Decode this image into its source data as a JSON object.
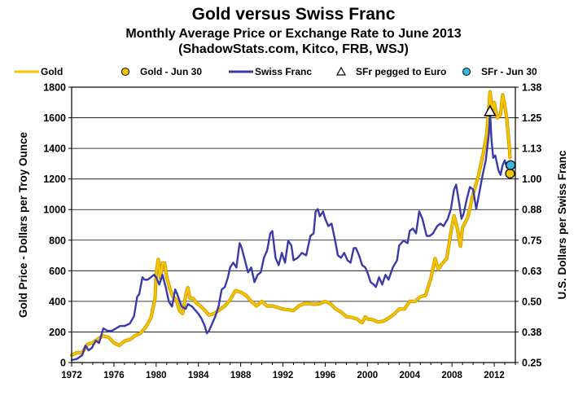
{
  "chart_data": {
    "type": "line",
    "title": "Gold versus Swiss Franc",
    "subtitle1": "Monthly Average Price or Exchange Rate to June 2013",
    "subtitle2": "(ShadowStats.com, Kitco, FRB, WSJ)",
    "ylabel_left": "Gold Price - Dollars per Troy Ounce",
    "ylabel_right": "U.S. Dollars per Swiss Franc",
    "xlim": [
      1972,
      2014
    ],
    "ylim_left": [
      0,
      1800
    ],
    "ylim_right": [
      0.25,
      1.38
    ],
    "x_ticks": [
      "1972",
      "1976",
      "1980",
      "1984",
      "1988",
      "1992",
      "1996",
      "2000",
      "2004",
      "2008",
      "2012"
    ],
    "y_ticks_left": [
      "0",
      "200",
      "400",
      "600",
      "800",
      "1000",
      "1200",
      "1400",
      "1600",
      "1800"
    ],
    "y_ticks_right": [
      "0.25",
      "0.38",
      "0.50",
      "0.63",
      "0.75",
      "0.88",
      "1.00",
      "1.13",
      "1.25",
      "1.38"
    ],
    "grid": true,
    "legend_position": "top",
    "legend": [
      {
        "label": "Gold",
        "kind": "line",
        "color": "#F5C400"
      },
      {
        "label": "Gold - Jun 30",
        "kind": "circle",
        "color": "#F5C400"
      },
      {
        "label": "Swiss Franc",
        "kind": "line",
        "color": "#3A3AA8"
      },
      {
        "label": "SFr pegged to Euro",
        "kind": "triangle",
        "color": "#ffffff"
      },
      {
        "label": "SFr - Jun 30",
        "kind": "circle",
        "color": "#35B8E0"
      }
    ],
    "series": [
      {
        "name": "Gold",
        "axis": "left",
        "color": "#F5C400",
        "points": [
          [
            1972.0,
            48
          ],
          [
            1972.5,
            65
          ],
          [
            1973.0,
            65
          ],
          [
            1973.5,
            120
          ],
          [
            1974.0,
            130
          ],
          [
            1974.5,
            155
          ],
          [
            1975.0,
            175
          ],
          [
            1975.5,
            165
          ],
          [
            1976.0,
            130
          ],
          [
            1976.5,
            112
          ],
          [
            1977.0,
            140
          ],
          [
            1977.5,
            150
          ],
          [
            1978.0,
            175
          ],
          [
            1978.5,
            190
          ],
          [
            1979.0,
            230
          ],
          [
            1979.5,
            290
          ],
          [
            1979.9,
            420
          ],
          [
            1980.0,
            580
          ],
          [
            1980.2,
            675
          ],
          [
            1980.4,
            550
          ],
          [
            1980.6,
            650
          ],
          [
            1980.8,
            650
          ],
          [
            1981.0,
            560
          ],
          [
            1981.3,
            480
          ],
          [
            1981.6,
            430
          ],
          [
            1981.9,
            410
          ],
          [
            1982.2,
            340
          ],
          [
            1982.5,
            320
          ],
          [
            1982.8,
            440
          ],
          [
            1983.0,
            490
          ],
          [
            1983.2,
            420
          ],
          [
            1983.5,
            420
          ],
          [
            1983.8,
            390
          ],
          [
            1984.0,
            380
          ],
          [
            1984.5,
            350
          ],
          [
            1985.0,
            310
          ],
          [
            1985.5,
            320
          ],
          [
            1986.0,
            345
          ],
          [
            1986.5,
            370
          ],
          [
            1987.0,
            410
          ],
          [
            1987.5,
            470
          ],
          [
            1988.0,
            460
          ],
          [
            1988.5,
            440
          ],
          [
            1989.0,
            400
          ],
          [
            1989.5,
            370
          ],
          [
            1990.0,
            400
          ],
          [
            1990.5,
            370
          ],
          [
            1991.0,
            370
          ],
          [
            1991.5,
            360
          ],
          [
            1992.0,
            350
          ],
          [
            1992.5,
            345
          ],
          [
            1993.0,
            340
          ],
          [
            1993.5,
            370
          ],
          [
            1994.0,
            385
          ],
          [
            1994.5,
            385
          ],
          [
            1995.0,
            380
          ],
          [
            1995.5,
            385
          ],
          [
            1996.0,
            400
          ],
          [
            1996.5,
            385
          ],
          [
            1997.0,
            350
          ],
          [
            1997.5,
            330
          ],
          [
            1998.0,
            300
          ],
          [
            1998.5,
            295
          ],
          [
            1999.0,
            285
          ],
          [
            1999.5,
            260
          ],
          [
            1999.8,
            300
          ],
          [
            2000.0,
            285
          ],
          [
            2000.5,
            280
          ],
          [
            2001.0,
            265
          ],
          [
            2001.5,
            270
          ],
          [
            2002.0,
            290
          ],
          [
            2002.5,
            315
          ],
          [
            2003.0,
            350
          ],
          [
            2003.5,
            350
          ],
          [
            2004.0,
            400
          ],
          [
            2004.5,
            400
          ],
          [
            2005.0,
            430
          ],
          [
            2005.5,
            440
          ],
          [
            2006.0,
            550
          ],
          [
            2006.4,
            680
          ],
          [
            2006.7,
            610
          ],
          [
            2007.0,
            640
          ],
          [
            2007.5,
            680
          ],
          [
            2008.0,
            890
          ],
          [
            2008.2,
            960
          ],
          [
            2008.5,
            880
          ],
          [
            2008.8,
            760
          ],
          [
            2009.0,
            880
          ],
          [
            2009.5,
            950
          ],
          [
            2010.0,
            1100
          ],
          [
            2010.5,
            1220
          ],
          [
            2011.0,
            1380
          ],
          [
            2011.3,
            1500
          ],
          [
            2011.6,
            1770
          ],
          [
            2011.8,
            1650
          ],
          [
            2012.0,
            1700
          ],
          [
            2012.3,
            1600
          ],
          [
            2012.6,
            1620
          ],
          [
            2012.8,
            1750
          ],
          [
            2013.0,
            1680
          ],
          [
            2013.2,
            1590
          ],
          [
            2013.4,
            1430
          ],
          [
            2013.5,
            1340
          ]
        ]
      },
      {
        "name": "Swiss Franc",
        "axis": "right",
        "color": "#3A3AA8",
        "points": [
          [
            1972.0,
            0.26
          ],
          [
            1972.5,
            0.265
          ],
          [
            1973.0,
            0.28
          ],
          [
            1973.3,
            0.32
          ],
          [
            1973.6,
            0.3
          ],
          [
            1973.9,
            0.31
          ],
          [
            1974.3,
            0.34
          ],
          [
            1974.6,
            0.33
          ],
          [
            1975.0,
            0.39
          ],
          [
            1975.4,
            0.38
          ],
          [
            1975.8,
            0.38
          ],
          [
            1976.2,
            0.39
          ],
          [
            1976.6,
            0.4
          ],
          [
            1977.0,
            0.4
          ],
          [
            1977.5,
            0.41
          ],
          [
            1977.9,
            0.44
          ],
          [
            1978.2,
            0.52
          ],
          [
            1978.4,
            0.53
          ],
          [
            1978.7,
            0.6
          ],
          [
            1978.9,
            0.59
          ],
          [
            1979.2,
            0.59
          ],
          [
            1979.5,
            0.6
          ],
          [
            1979.8,
            0.61
          ],
          [
            1980.0,
            0.6
          ],
          [
            1980.3,
            0.57
          ],
          [
            1980.6,
            0.61
          ],
          [
            1980.9,
            0.56
          ],
          [
            1981.2,
            0.5
          ],
          [
            1981.5,
            0.48
          ],
          [
            1981.8,
            0.55
          ],
          [
            1982.0,
            0.53
          ],
          [
            1982.4,
            0.48
          ],
          [
            1982.8,
            0.47
          ],
          [
            1983.0,
            0.49
          ],
          [
            1983.4,
            0.48
          ],
          [
            1983.8,
            0.46
          ],
          [
            1984.0,
            0.45
          ],
          [
            1984.3,
            0.43
          ],
          [
            1984.6,
            0.4
          ],
          [
            1984.8,
            0.37
          ],
          [
            1985.0,
            0.38
          ],
          [
            1985.3,
            0.41
          ],
          [
            1985.6,
            0.44
          ],
          [
            1985.9,
            0.48
          ],
          [
            1986.2,
            0.55
          ],
          [
            1986.5,
            0.56
          ],
          [
            1986.8,
            0.6
          ],
          [
            1987.0,
            0.64
          ],
          [
            1987.3,
            0.66
          ],
          [
            1987.6,
            0.64
          ],
          [
            1987.9,
            0.74
          ],
          [
            1988.1,
            0.72
          ],
          [
            1988.4,
            0.67
          ],
          [
            1988.7,
            0.62
          ],
          [
            1989.0,
            0.64
          ],
          [
            1989.3,
            0.58
          ],
          [
            1989.6,
            0.61
          ],
          [
            1989.9,
            0.62
          ],
          [
            1990.2,
            0.68
          ],
          [
            1990.5,
            0.71
          ],
          [
            1990.8,
            0.78
          ],
          [
            1991.0,
            0.79
          ],
          [
            1991.3,
            0.68
          ],
          [
            1991.6,
            0.65
          ],
          [
            1991.9,
            0.7
          ],
          [
            1992.2,
            0.66
          ],
          [
            1992.5,
            0.75
          ],
          [
            1992.8,
            0.73
          ],
          [
            1993.0,
            0.67
          ],
          [
            1993.4,
            0.68
          ],
          [
            1993.8,
            0.7
          ],
          [
            1994.2,
            0.69
          ],
          [
            1994.6,
            0.77
          ],
          [
            1994.9,
            0.78
          ],
          [
            1995.1,
            0.87
          ],
          [
            1995.3,
            0.88
          ],
          [
            1995.5,
            0.85
          ],
          [
            1995.8,
            0.87
          ],
          [
            1996.0,
            0.84
          ],
          [
            1996.3,
            0.81
          ],
          [
            1996.6,
            0.82
          ],
          [
            1996.9,
            0.76
          ],
          [
            1997.2,
            0.69
          ],
          [
            1997.5,
            0.68
          ],
          [
            1997.8,
            0.7
          ],
          [
            1998.1,
            0.67
          ],
          [
            1998.4,
            0.66
          ],
          [
            1998.7,
            0.72
          ],
          [
            1998.9,
            0.72
          ],
          [
            1999.2,
            0.69
          ],
          [
            1999.5,
            0.65
          ],
          [
            1999.8,
            0.64
          ],
          [
            2000.0,
            0.62
          ],
          [
            2000.3,
            0.58
          ],
          [
            2000.6,
            0.57
          ],
          [
            2000.8,
            0.56
          ],
          [
            2001.1,
            0.6
          ],
          [
            2001.4,
            0.57
          ],
          [
            2001.7,
            0.61
          ],
          [
            2002.0,
            0.59
          ],
          [
            2002.4,
            0.64
          ],
          [
            2002.8,
            0.67
          ],
          [
            2003.0,
            0.73
          ],
          [
            2003.4,
            0.75
          ],
          [
            2003.8,
            0.74
          ],
          [
            2004.0,
            0.79
          ],
          [
            2004.3,
            0.8
          ],
          [
            2004.6,
            0.78
          ],
          [
            2004.9,
            0.87
          ],
          [
            2005.2,
            0.84
          ],
          [
            2005.6,
            0.77
          ],
          [
            2005.9,
            0.77
          ],
          [
            2006.2,
            0.78
          ],
          [
            2006.6,
            0.81
          ],
          [
            2006.9,
            0.82
          ],
          [
            2007.2,
            0.81
          ],
          [
            2007.6,
            0.84
          ],
          [
            2007.9,
            0.88
          ],
          [
            2008.2,
            0.96
          ],
          [
            2008.4,
            0.98
          ],
          [
            2008.7,
            0.9
          ],
          [
            2008.9,
            0.84
          ],
          [
            2009.1,
            0.86
          ],
          [
            2009.4,
            0.92
          ],
          [
            2009.7,
            0.97
          ],
          [
            2010.0,
            0.96
          ],
          [
            2010.3,
            0.88
          ],
          [
            2010.6,
            0.95
          ],
          [
            2010.9,
            1.02
          ],
          [
            2011.2,
            1.08
          ],
          [
            2011.5,
            1.19
          ],
          [
            2011.6,
            1.28
          ],
          [
            2011.75,
            1.16
          ],
          [
            2011.9,
            1.09
          ],
          [
            2012.1,
            1.1
          ],
          [
            2012.4,
            1.04
          ],
          [
            2012.6,
            1.02
          ],
          [
            2012.8,
            1.06
          ],
          [
            2013.0,
            1.08
          ],
          [
            2013.2,
            1.05
          ],
          [
            2013.5,
            1.06
          ]
        ]
      }
    ],
    "markers": [
      {
        "name": "Gold - Jun 30",
        "axis": "left",
        "x": 2013.5,
        "y": 1235
      },
      {
        "name": "SFr - Jun 30",
        "axis": "right",
        "x": 2013.55,
        "y": 1.06
      },
      {
        "name": "SFr pegged to Euro",
        "axis": "right",
        "x": 2011.6,
        "y": 1.28
      }
    ]
  }
}
